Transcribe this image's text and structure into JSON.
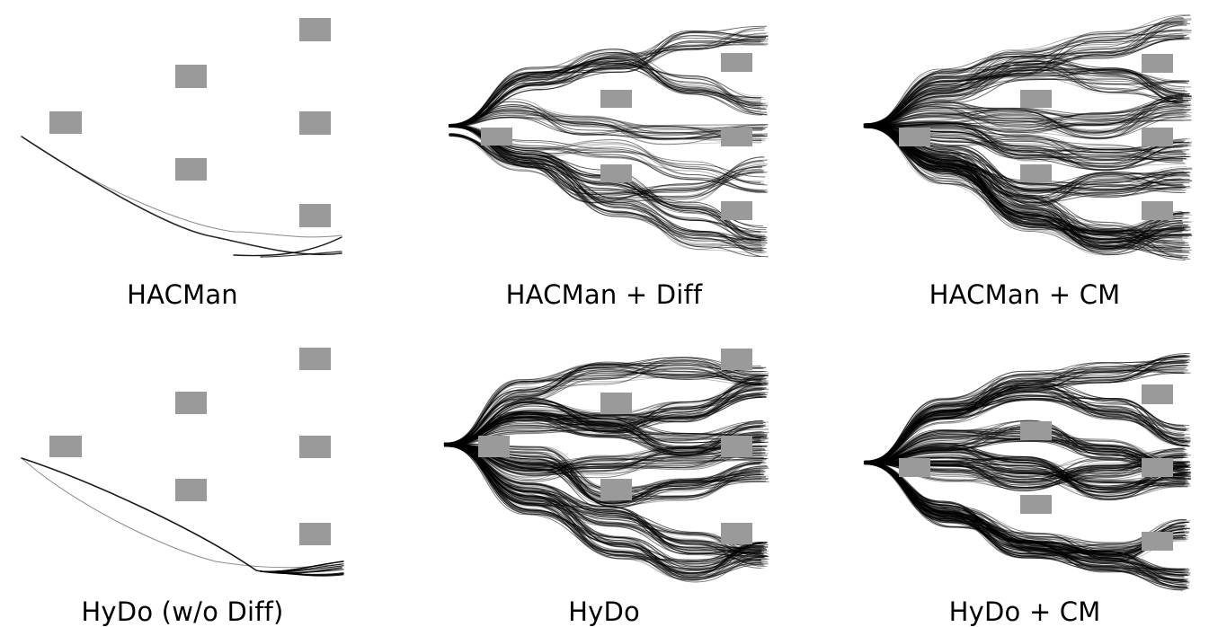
{
  "colors": {
    "obstacle": "#9a9a9a",
    "trajectory": "#000000",
    "background": "#ffffff"
  },
  "panels": [
    {
      "caption": "HACMan",
      "density": "sparse",
      "obstacle_layout": "scattered"
    },
    {
      "caption": "HACMan + Diff",
      "density": "medium",
      "obstacle_layout": "grid"
    },
    {
      "caption": "HACMan + CM",
      "density": "dense",
      "obstacle_layout": "grid"
    },
    {
      "caption": "HyDo (w/o Diff)",
      "density": "sparse",
      "obstacle_layout": "scattered"
    },
    {
      "caption": "HyDo",
      "density": "dense",
      "obstacle_layout": "grid"
    },
    {
      "caption": "HyDo + CM",
      "density": "dense",
      "obstacle_layout": "grid"
    }
  ]
}
